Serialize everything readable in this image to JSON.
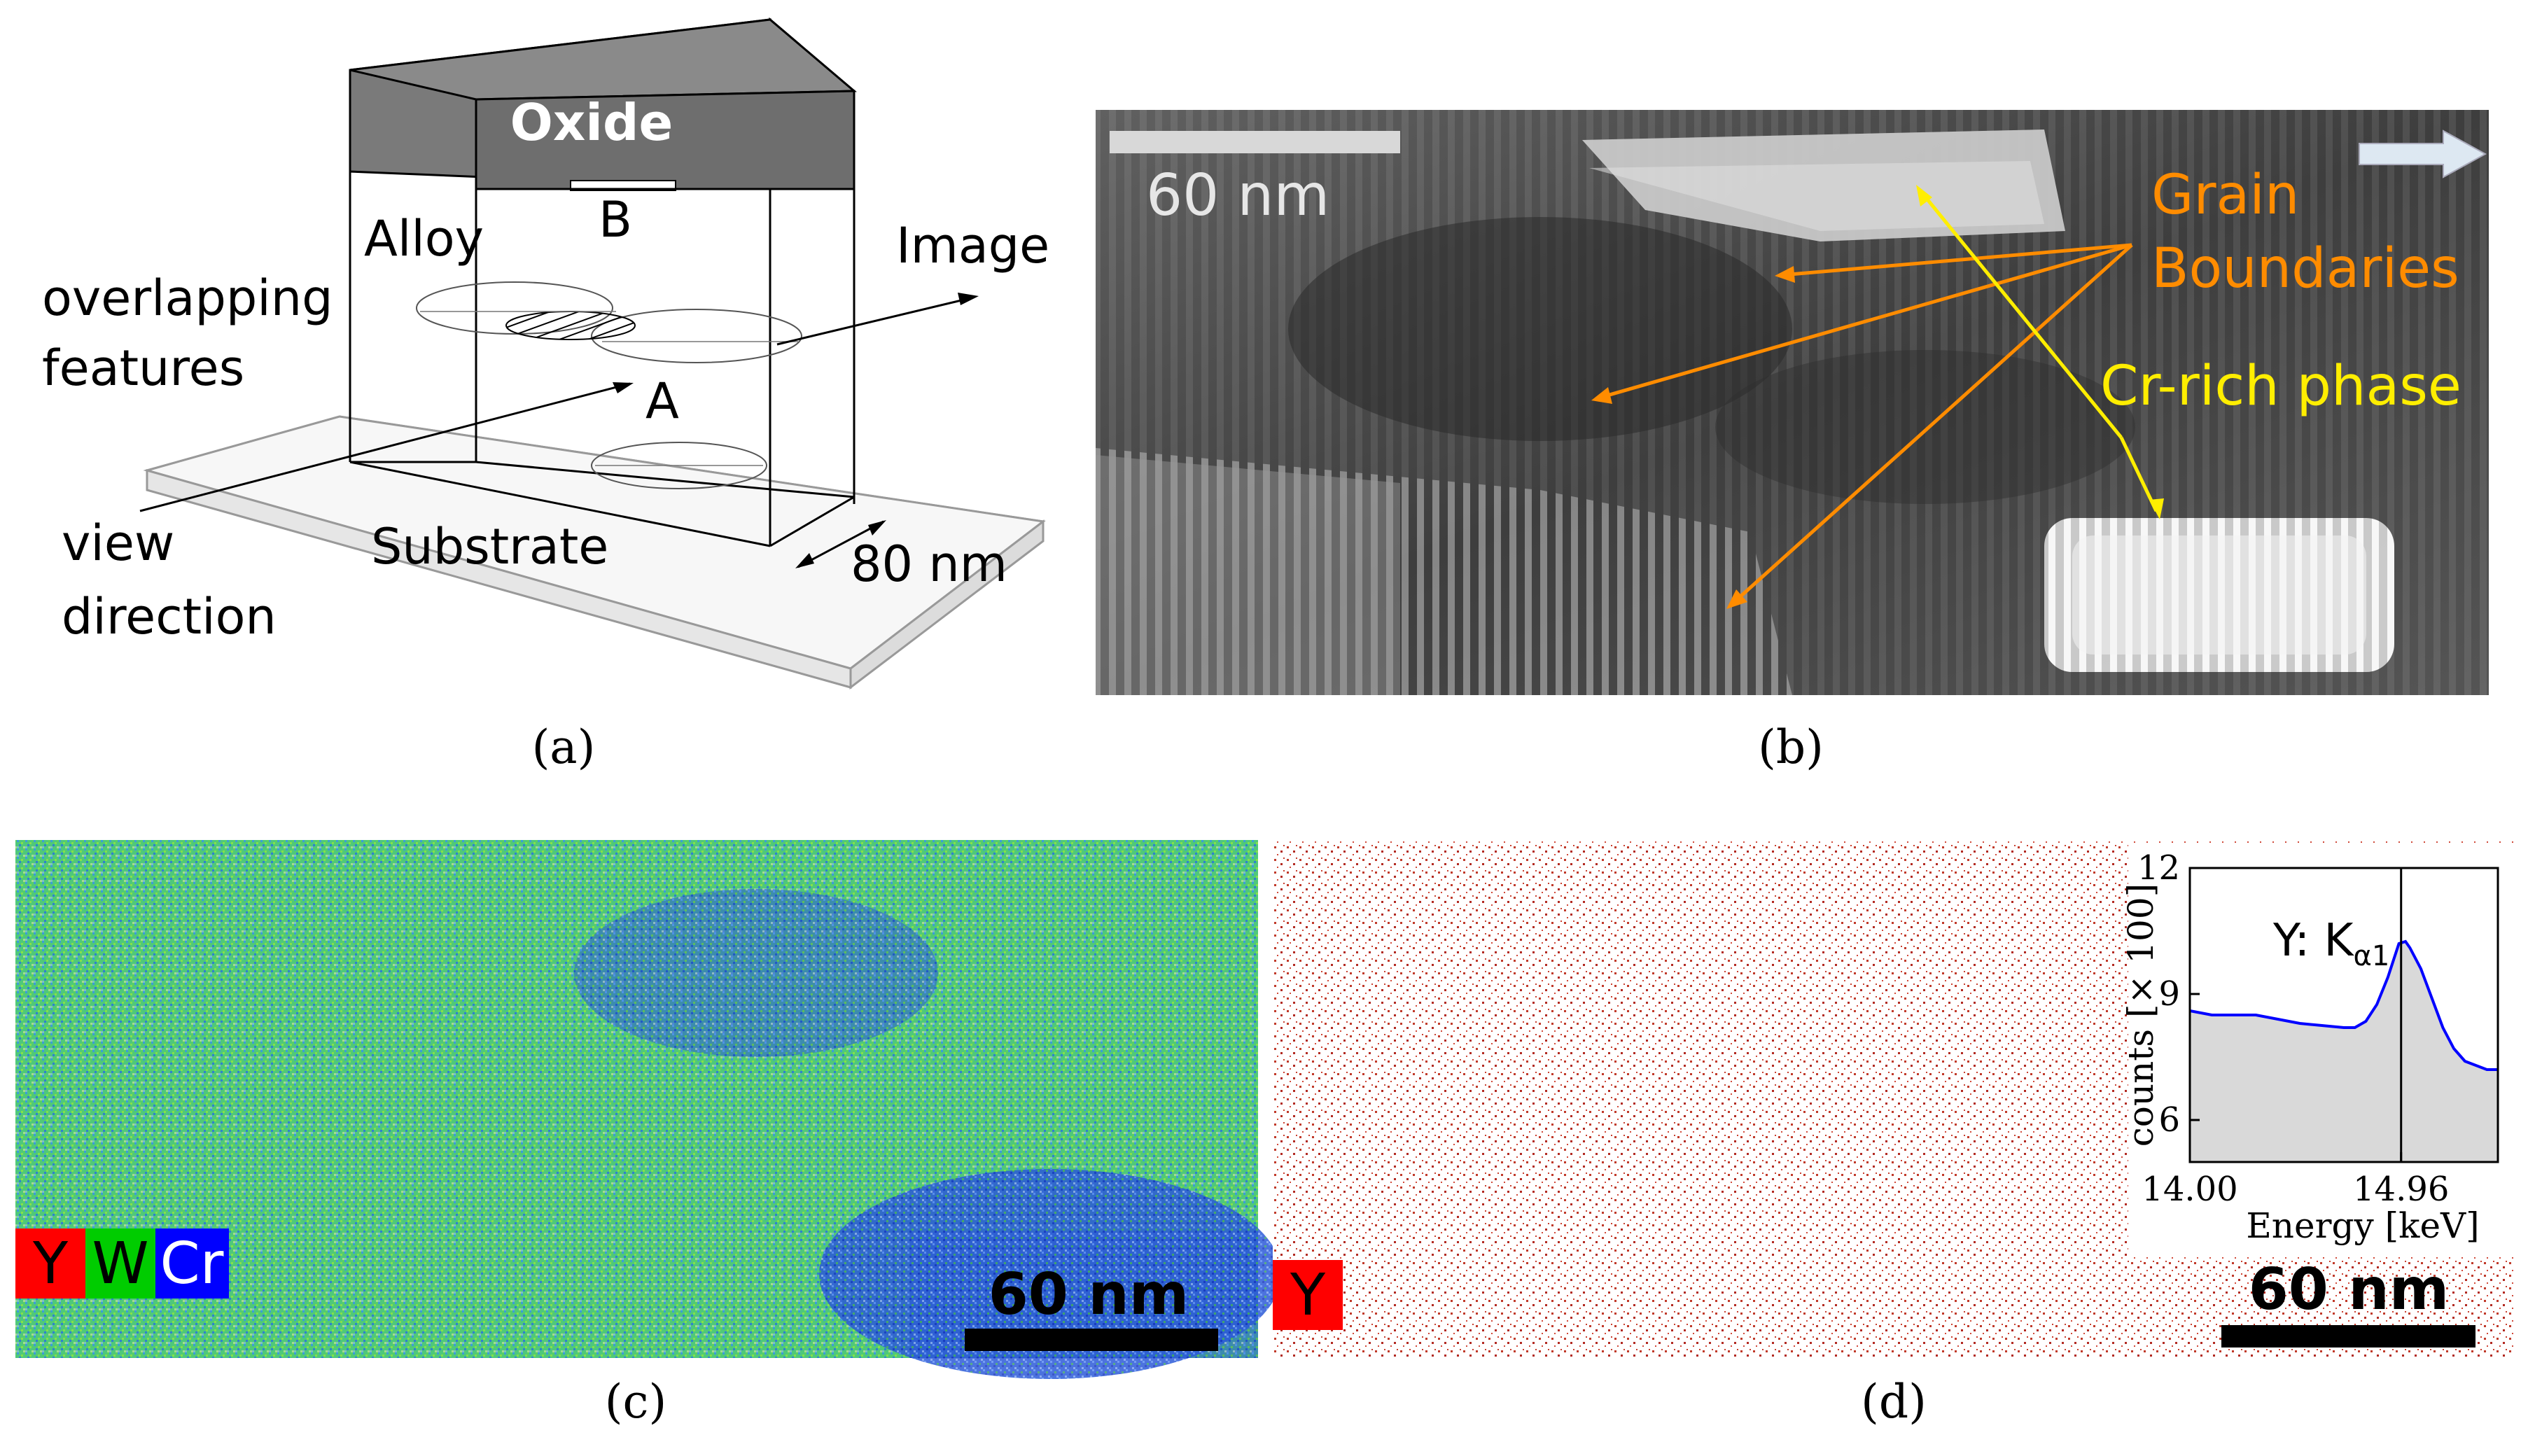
{
  "panel_a": {
    "caption": "(a)",
    "oxide_label": "Oxide",
    "alloy_label": "Alloy",
    "point_b": "B",
    "point_a": "A",
    "overlap_label_line1": "overlapping",
    "overlap_label_line2": "features",
    "image_label": "Image",
    "view_label_line1": "view",
    "view_label_line2": "direction",
    "substrate_label": "Substrate",
    "thickness_label": "80 nm"
  },
  "panel_b": {
    "caption": "(b)",
    "scale_label": "60 nm",
    "grain_label_line1": "Grain",
    "grain_label_line2": "Boundaries",
    "cr_label": "Cr-rich phase",
    "colors": {
      "grain": "#ff8c00",
      "cr": "#ffee00"
    }
  },
  "panel_c": {
    "caption": "(c)",
    "legend": [
      {
        "label": "Y",
        "color": "#ff0000"
      },
      {
        "label": "W",
        "color": "#00cc00"
      },
      {
        "label": "Cr",
        "color": "#0000ff"
      }
    ],
    "scale_label": "60 nm"
  },
  "panel_d": {
    "caption": "(d)",
    "legend_label": "Y",
    "legend_color": "#ff0000",
    "scale_label": "60 nm",
    "inset_title_main": "Y: K",
    "inset_title_sub": "α1"
  },
  "chart_data": {
    "type": "area",
    "title": "Y: Kα1",
    "xlabel": "Energy [keV]",
    "ylabel": "counts [× 100]",
    "xticks": [
      "14.00",
      "14.96"
    ],
    "yticks": [
      "6",
      "9",
      "12"
    ],
    "xlim": [
      14.0,
      15.4
    ],
    "ylim": [
      5.0,
      12.0
    ],
    "marker_x": 14.96,
    "grid": false,
    "series": [
      {
        "color": "#0000ff",
        "x": [
          14.0,
          14.1,
          14.2,
          14.3,
          14.4,
          14.5,
          14.6,
          14.7,
          14.75,
          14.8,
          14.85,
          14.9,
          14.95,
          14.98,
          15.0,
          15.05,
          15.1,
          15.15,
          15.2,
          15.25,
          15.3,
          15.35,
          15.4
        ],
        "values": [
          8.6,
          8.5,
          8.5,
          8.5,
          8.4,
          8.3,
          8.25,
          8.2,
          8.2,
          8.35,
          8.75,
          9.4,
          10.2,
          10.25,
          10.1,
          9.6,
          8.9,
          8.2,
          7.7,
          7.4,
          7.3,
          7.2,
          7.2
        ]
      }
    ]
  }
}
